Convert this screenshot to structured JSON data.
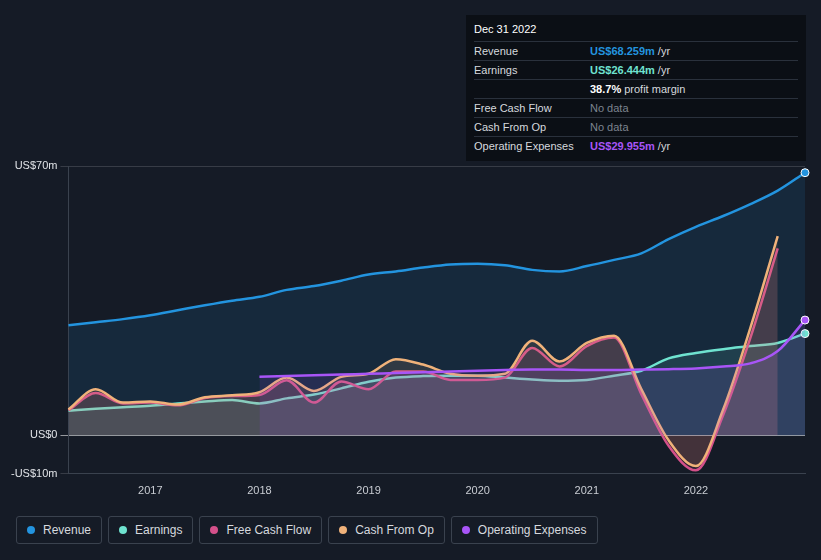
{
  "chart_data": {
    "type": "line",
    "categories": [
      null,
      null,
      null,
      "2017",
      null,
      null,
      null,
      "2018",
      null,
      null,
      null,
      "2019",
      null,
      null,
      null,
      "2020",
      null,
      null,
      null,
      "2021",
      null,
      null,
      null,
      "2022",
      null,
      null,
      null,
      null
    ],
    "series": [
      {
        "name": "Revenue",
        "color": "#2394df",
        "values": [
          28.6,
          29.4,
          30.2,
          31.2,
          32.5,
          33.8,
          35.0,
          36.0,
          37.8,
          38.8,
          40.2,
          41.8,
          42.6,
          43.6,
          44.4,
          44.6,
          44.2,
          43.0,
          42.6,
          44.0,
          45.6,
          47.3,
          51.0,
          54.2,
          57.0,
          60.1,
          63.6,
          68.259
        ]
      },
      {
        "name": "Earnings",
        "color": "#6fe3d0",
        "values": [
          6.4,
          6.9,
          7.3,
          7.7,
          8.3,
          8.8,
          9.2,
          8.3,
          9.6,
          10.6,
          12.2,
          13.9,
          15.0,
          15.4,
          15.5,
          15.5,
          15.0,
          14.5,
          14.2,
          14.4,
          15.5,
          16.8,
          20.0,
          21.4,
          22.4,
          23.2,
          24.0,
          26.444
        ]
      },
      {
        "name": "Free Cash Flow",
        "color": "#d4508a",
        "values": [
          6.5,
          11.0,
          8.3,
          8.5,
          7.8,
          9.7,
          10.2,
          10.5,
          14.3,
          8.5,
          14.0,
          12.0,
          16.6,
          16.6,
          14.4,
          14.4,
          15.0,
          22.7,
          17.9,
          23.2,
          25.4,
          10.7,
          -2.7,
          -9.1,
          5.3,
          25.4,
          48.6,
          null
        ]
      },
      {
        "name": "Cash From Op",
        "color": "#f0b27a",
        "values": [
          6.7,
          12.0,
          8.5,
          8.8,
          8.0,
          9.9,
          10.4,
          11.2,
          15.0,
          11.5,
          15.2,
          16.0,
          19.8,
          18.4,
          16.0,
          15.5,
          16.0,
          24.6,
          19.2,
          24.0,
          25.9,
          12.0,
          -1.3,
          -8.0,
          6.7,
          28.0,
          51.8,
          null
        ]
      },
      {
        "name": "Operating Expenses",
        "color": "#a855f7",
        "values": [
          null,
          null,
          null,
          null,
          null,
          null,
          null,
          15.2,
          15.4,
          15.6,
          15.8,
          16.0,
          16.2,
          16.4,
          16.6,
          16.8,
          17.0,
          17.1,
          17.1,
          17.0,
          17.0,
          17.1,
          17.2,
          17.4,
          17.9,
          18.7,
          21.9,
          29.955
        ]
      }
    ],
    "ylim": [
      -10,
      70
    ],
    "yticks": [
      {
        "value": -10,
        "label": "-US$10m"
      },
      {
        "value": 0,
        "label": "US$0"
      },
      {
        "value": 70,
        "label": "US$70m"
      }
    ],
    "grid": true,
    "legend": "bottom",
    "info_box": {
      "title": "Dec 31 2022",
      "rows": [
        {
          "label": "Revenue",
          "value": "US$68.259m",
          "suffix": "/yr",
          "color": "#2394df"
        },
        {
          "label": "Earnings",
          "value": "US$26.444m",
          "suffix": "/yr",
          "color": "#6fe3d0"
        },
        {
          "value": "38.7%",
          "suffix": "profit margin",
          "color": "#ffffff"
        },
        {
          "label": "Free Cash Flow",
          "value": "No data"
        },
        {
          "label": "Cash From Op",
          "value": "No data"
        },
        {
          "label": "Operating Expenses",
          "value": "US$29.955m",
          "suffix": "/yr",
          "color": "#a855f7"
        }
      ]
    }
  }
}
